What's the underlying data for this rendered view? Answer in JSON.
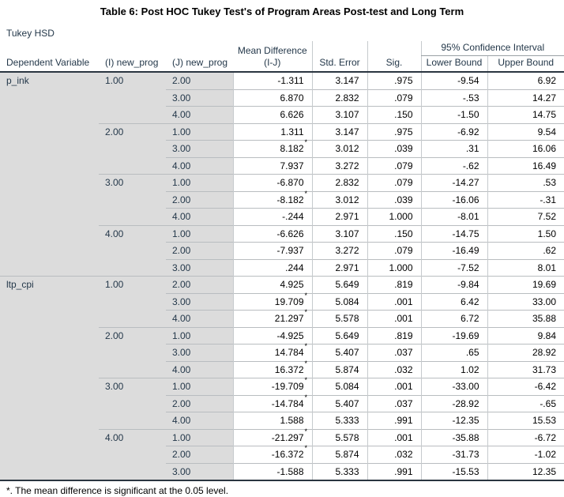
{
  "title": "Table 6: Post HOC Tukey Test's of Program Areas Post-test and Long Term",
  "subtitle": "Tukey HSD",
  "star_symbol": "*",
  "footnote": "*. The mean difference is significant at the 0.05 level.",
  "colors": {
    "stub_background": "#dcdcdc",
    "header_text": "#24384a",
    "dark_border": "#2a3540",
    "grid_line": "#b9bdc0"
  },
  "table": {
    "headers": {
      "dependent_variable": "Dependent Variable",
      "i_group": "(I) new_prog",
      "j_group": "(J) new_prog",
      "mean_difference": "Mean Difference (I-J)",
      "std_error": "Std. Error",
      "sig": "Sig.",
      "ci_group": "95% Confidence Interval",
      "lower_bound": "Lower Bound",
      "upper_bound": "Upper Bound"
    },
    "sections": [
      {
        "dependent_variable": "p_ink",
        "groups": [
          {
            "i": "1.00",
            "rows": [
              {
                "j": "2.00",
                "mean_diff": "-1.311",
                "star": false,
                "std_error": "3.147",
                "sig": ".975",
                "lower": "-9.54",
                "upper": "6.92"
              },
              {
                "j": "3.00",
                "mean_diff": "6.870",
                "star": false,
                "std_error": "2.832",
                "sig": ".079",
                "lower": "-.53",
                "upper": "14.27"
              },
              {
                "j": "4.00",
                "mean_diff": "6.626",
                "star": false,
                "std_error": "3.107",
                "sig": ".150",
                "lower": "-1.50",
                "upper": "14.75"
              }
            ]
          },
          {
            "i": "2.00",
            "rows": [
              {
                "j": "1.00",
                "mean_diff": "1.311",
                "star": false,
                "std_error": "3.147",
                "sig": ".975",
                "lower": "-6.92",
                "upper": "9.54"
              },
              {
                "j": "3.00",
                "mean_diff": "8.182",
                "star": true,
                "std_error": "3.012",
                "sig": ".039",
                "lower": ".31",
                "upper": "16.06"
              },
              {
                "j": "4.00",
                "mean_diff": "7.937",
                "star": false,
                "std_error": "3.272",
                "sig": ".079",
                "lower": "-.62",
                "upper": "16.49"
              }
            ]
          },
          {
            "i": "3.00",
            "rows": [
              {
                "j": "1.00",
                "mean_diff": "-6.870",
                "star": false,
                "std_error": "2.832",
                "sig": ".079",
                "lower": "-14.27",
                "upper": ".53"
              },
              {
                "j": "2.00",
                "mean_diff": "-8.182",
                "star": true,
                "std_error": "3.012",
                "sig": ".039",
                "lower": "-16.06",
                "upper": "-.31"
              },
              {
                "j": "4.00",
                "mean_diff": "-.244",
                "star": false,
                "std_error": "2.971",
                "sig": "1.000",
                "lower": "-8.01",
                "upper": "7.52"
              }
            ]
          },
          {
            "i": "4.00",
            "rows": [
              {
                "j": "1.00",
                "mean_diff": "-6.626",
                "star": false,
                "std_error": "3.107",
                "sig": ".150",
                "lower": "-14.75",
                "upper": "1.50"
              },
              {
                "j": "2.00",
                "mean_diff": "-7.937",
                "star": false,
                "std_error": "3.272",
                "sig": ".079",
                "lower": "-16.49",
                "upper": ".62"
              },
              {
                "j": "3.00",
                "mean_diff": ".244",
                "star": false,
                "std_error": "2.971",
                "sig": "1.000",
                "lower": "-7.52",
                "upper": "8.01"
              }
            ]
          }
        ]
      },
      {
        "dependent_variable": "ltp_cpi",
        "groups": [
          {
            "i": "1.00",
            "rows": [
              {
                "j": "2.00",
                "mean_diff": "4.925",
                "star": false,
                "std_error": "5.649",
                "sig": ".819",
                "lower": "-9.84",
                "upper": "19.69"
              },
              {
                "j": "3.00",
                "mean_diff": "19.709",
                "star": true,
                "std_error": "5.084",
                "sig": ".001",
                "lower": "6.42",
                "upper": "33.00"
              },
              {
                "j": "4.00",
                "mean_diff": "21.297",
                "star": true,
                "std_error": "5.578",
                "sig": ".001",
                "lower": "6.72",
                "upper": "35.88"
              }
            ]
          },
          {
            "i": "2.00",
            "rows": [
              {
                "j": "1.00",
                "mean_diff": "-4.925",
                "star": false,
                "std_error": "5.649",
                "sig": ".819",
                "lower": "-19.69",
                "upper": "9.84"
              },
              {
                "j": "3.00",
                "mean_diff": "14.784",
                "star": true,
                "std_error": "5.407",
                "sig": ".037",
                "lower": ".65",
                "upper": "28.92"
              },
              {
                "j": "4.00",
                "mean_diff": "16.372",
                "star": true,
                "std_error": "5.874",
                "sig": ".032",
                "lower": "1.02",
                "upper": "31.73"
              }
            ]
          },
          {
            "i": "3.00",
            "rows": [
              {
                "j": "1.00",
                "mean_diff": "-19.709",
                "star": true,
                "std_error": "5.084",
                "sig": ".001",
                "lower": "-33.00",
                "upper": "-6.42"
              },
              {
                "j": "2.00",
                "mean_diff": "-14.784",
                "star": true,
                "std_error": "5.407",
                "sig": ".037",
                "lower": "-28.92",
                "upper": "-.65"
              },
              {
                "j": "4.00",
                "mean_diff": "1.588",
                "star": false,
                "std_error": "5.333",
                "sig": ".991",
                "lower": "-12.35",
                "upper": "15.53"
              }
            ]
          },
          {
            "i": "4.00",
            "rows": [
              {
                "j": "1.00",
                "mean_diff": "-21.297",
                "star": true,
                "std_error": "5.578",
                "sig": ".001",
                "lower": "-35.88",
                "upper": "-6.72"
              },
              {
                "j": "2.00",
                "mean_diff": "-16.372",
                "star": true,
                "std_error": "5.874",
                "sig": ".032",
                "lower": "-31.73",
                "upper": "-1.02"
              },
              {
                "j": "3.00",
                "mean_diff": "-1.588",
                "star": false,
                "std_error": "5.333",
                "sig": ".991",
                "lower": "-15.53",
                "upper": "12.35"
              }
            ]
          }
        ]
      }
    ]
  }
}
